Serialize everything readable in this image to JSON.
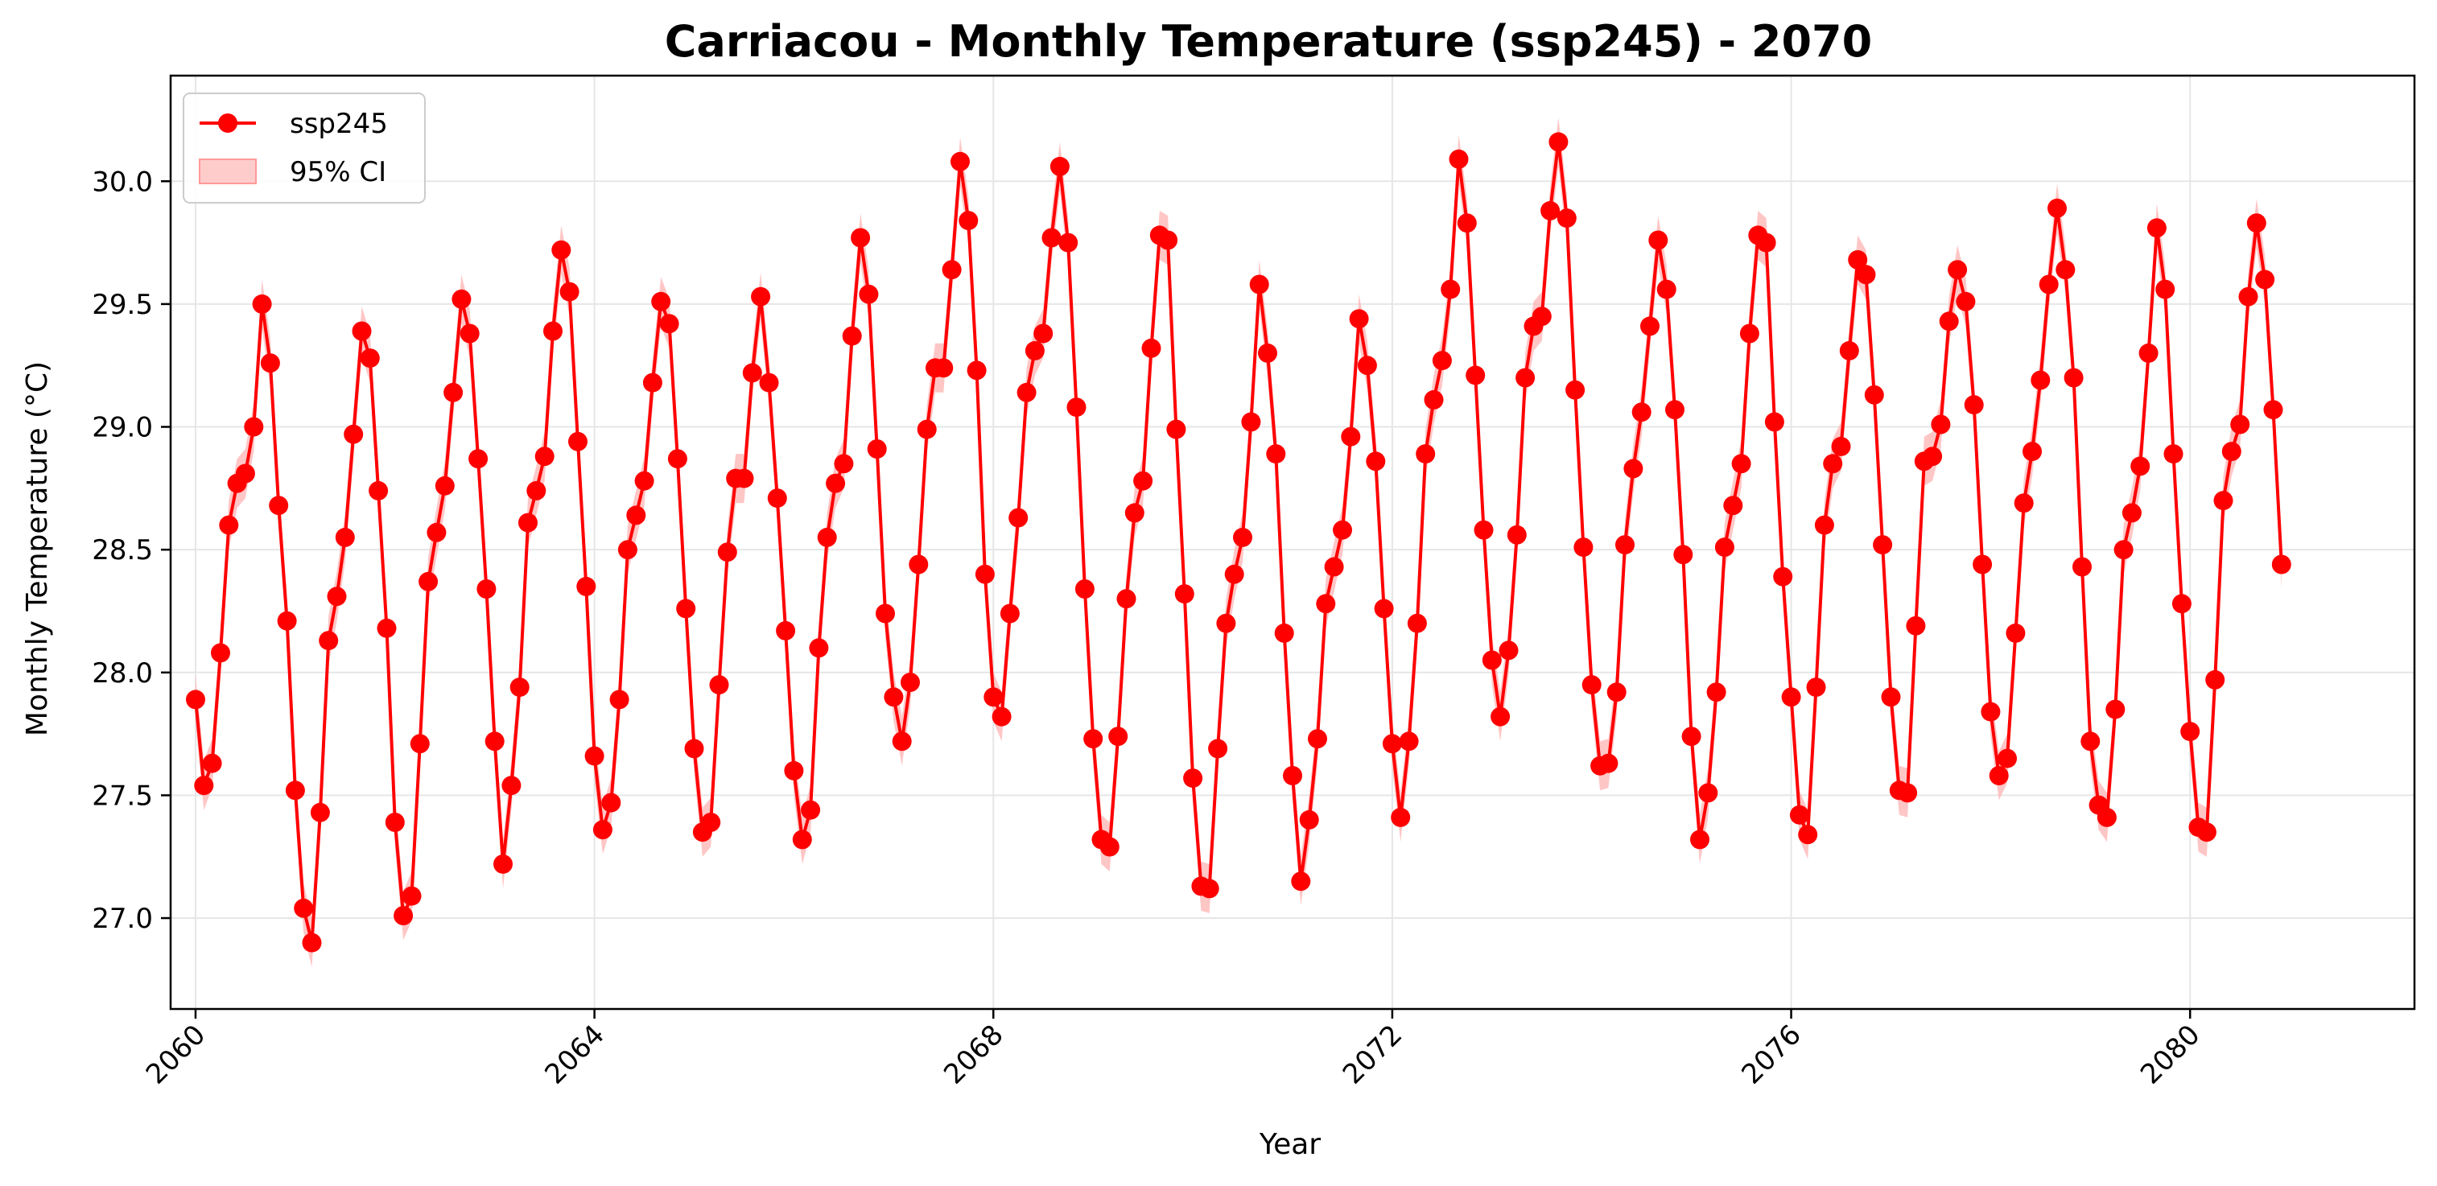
{
  "chart_data": {
    "type": "line",
    "title": "Carriacou - Monthly Temperature (ssp245) - 2070",
    "xlabel": "Year",
    "ylabel": "Monthly Temperature (°C)",
    "xlim": [
      2059.75,
      2082.25
    ],
    "ylim": [
      26.63,
      30.43
    ],
    "xticks": [
      2060,
      2064,
      2068,
      2072,
      2076,
      2080
    ],
    "xtick_labels": [
      "2060",
      "2064",
      "2068",
      "2072",
      "2076",
      "2080"
    ],
    "yticks": [
      27.0,
      27.5,
      28.0,
      28.5,
      29.0,
      29.5,
      30.0
    ],
    "ytick_labels": [
      "27.0",
      "27.5",
      "28.0",
      "28.5",
      "29.0",
      "29.5",
      "30.0"
    ],
    "grid": true,
    "legend_position": "upper-left",
    "legend": [
      "ssp245",
      "95% CI"
    ],
    "colors": {
      "line": "#ff0000",
      "ci": "#ffb3b3"
    },
    "ci_halfwidth": 0.1,
    "series": [
      {
        "name": "ssp245",
        "start_year": 2060,
        "start_month": 1,
        "values": [
          27.89,
          27.54,
          27.63,
          28.08,
          28.6,
          28.77,
          28.81,
          29.0,
          29.5,
          29.26,
          28.68,
          28.21,
          27.52,
          27.04,
          26.9,
          27.43,
          28.13,
          28.31,
          28.55,
          28.97,
          29.39,
          29.28,
          28.74,
          28.18,
          27.39,
          27.01,
          27.09,
          27.71,
          28.37,
          28.57,
          28.76,
          29.14,
          29.52,
          29.38,
          28.87,
          28.34,
          27.72,
          27.22,
          27.54,
          27.94,
          28.61,
          28.74,
          28.88,
          29.39,
          29.72,
          29.55,
          28.94,
          28.35,
          27.66,
          27.36,
          27.47,
          27.89,
          28.5,
          28.64,
          28.78,
          29.18,
          29.51,
          29.42,
          28.87,
          28.26,
          27.69,
          27.35,
          27.39,
          27.95,
          28.49,
          28.79,
          28.79,
          29.22,
          29.53,
          29.18,
          28.71,
          28.17,
          27.6,
          27.32,
          27.44,
          28.1,
          28.55,
          28.77,
          28.85,
          29.37,
          29.77,
          29.54,
          28.91,
          28.24,
          27.9,
          27.72,
          27.96,
          28.44,
          28.99,
          29.24,
          29.24,
          29.64,
          30.08,
          29.84,
          29.23,
          28.4,
          27.9,
          27.82,
          28.24,
          28.63,
          29.14,
          29.31,
          29.38,
          29.77,
          30.06,
          29.75,
          29.08,
          28.34,
          27.73,
          27.32,
          27.29,
          27.74,
          28.3,
          28.65,
          28.78,
          29.32,
          29.78,
          29.76,
          28.99,
          28.32,
          27.57,
          27.13,
          27.12,
          27.69,
          28.2,
          28.4,
          28.55,
          29.02,
          29.58,
          29.3,
          28.89,
          28.16,
          27.58,
          27.15,
          27.4,
          27.73,
          28.28,
          28.43,
          28.58,
          28.96,
          29.44,
          29.25,
          28.86,
          28.26,
          27.71,
          27.41,
          27.72,
          28.2,
          28.89,
          29.11,
          29.27,
          29.56,
          30.09,
          29.83,
          29.21,
          28.58,
          28.05,
          27.82,
          28.09,
          28.56,
          29.2,
          29.41,
          29.45,
          29.88,
          30.16,
          29.85,
          29.15,
          28.51,
          27.95,
          27.62,
          27.63,
          27.92,
          28.52,
          28.83,
          29.06,
          29.41,
          29.76,
          29.56,
          29.07,
          28.48,
          27.74,
          27.32,
          27.51,
          27.92,
          28.51,
          28.68,
          28.85,
          29.38,
          29.78,
          29.75,
          29.02,
          28.39,
          27.9,
          27.42,
          27.34,
          27.94,
          28.6,
          28.85,
          28.92,
          29.31,
          29.68,
          29.62,
          29.13,
          28.52,
          27.9,
          27.52,
          27.51,
          28.19,
          28.86,
          28.88,
          29.01,
          29.43,
          29.64,
          29.51,
          29.09,
          28.44,
          27.84,
          27.58,
          27.65,
          28.16,
          28.69,
          28.9,
          29.19,
          29.58,
          29.89,
          29.64,
          29.2,
          28.43,
          27.72,
          27.46,
          27.41,
          27.85,
          28.5,
          28.65,
          28.84,
          29.3,
          29.81,
          29.56,
          28.89,
          28.28,
          27.76,
          27.37,
          27.35,
          27.97,
          28.7,
          28.9,
          29.01,
          29.53,
          29.83,
          29.6,
          29.07,
          28.44
        ]
      }
    ]
  }
}
